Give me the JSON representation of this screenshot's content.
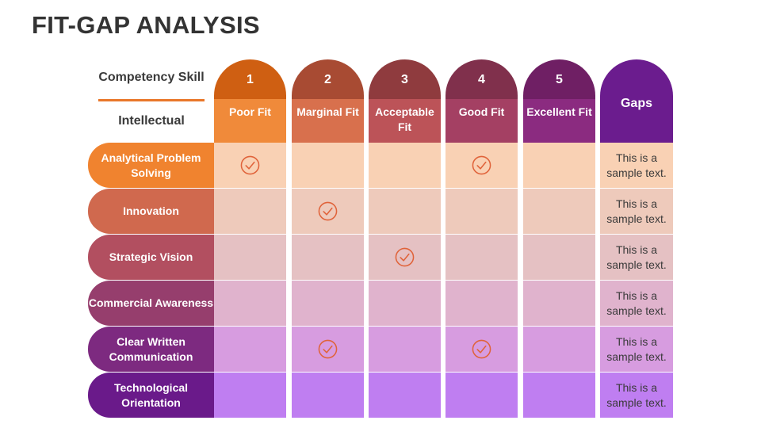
{
  "title": "FIT-GAP ANALYSIS",
  "header": {
    "competency_label": "Competency Skill",
    "category_label": "Intellectual",
    "gaps_label": "Gaps",
    "columns": [
      {
        "number": "1",
        "label": "Poor Fit",
        "color": "#cf5f12",
        "sub_color": "#f08a3a"
      },
      {
        "number": "2",
        "label": "Marginal Fit",
        "color": "#a84b33",
        "sub_color": "#d8704d"
      },
      {
        "number": "3",
        "label": "Acceptable Fit",
        "color": "#8f3b3e",
        "sub_color": "#bc5358"
      },
      {
        "number": "4",
        "label": "Good Fit",
        "color": "#80304c",
        "sub_color": "#a44063"
      },
      {
        "number": "5",
        "label": "Excellent Fit",
        "color": "#6f1f64",
        "sub_color": "#8b2b80"
      }
    ]
  },
  "rows": [
    {
      "label": "Analytical Problem Solving",
      "label_color": "#f0832f",
      "cell_color": "#f9d1b4",
      "checks": [
        true,
        false,
        false,
        true,
        false
      ],
      "gap": "This is a sample text."
    },
    {
      "label": "Innovation",
      "label_color": "#d0694e",
      "cell_color": "#eecabb",
      "checks": [
        false,
        true,
        false,
        false,
        false
      ],
      "gap": "This is a sample text."
    },
    {
      "label": "Strategic Vision",
      "label_color": "#b24f60",
      "cell_color": "#e5c1c3",
      "checks": [
        false,
        false,
        true,
        false,
        false
      ],
      "gap": "This is a sample text."
    },
    {
      "label": "Commercial Awareness",
      "label_color": "#963e6d",
      "cell_color": "#e0b3cd",
      "checks": [
        false,
        false,
        false,
        false,
        false
      ],
      "gap": "This is a sample text."
    },
    {
      "label": "Clear Written Communication",
      "label_color": "#7d2a80",
      "cell_color": "#d79ce0",
      "checks": [
        false,
        true,
        false,
        true,
        false
      ],
      "gap": "This is a sample text."
    },
    {
      "label": "Technological Orientation",
      "label_color": "#6a1a8a",
      "cell_color": "#bf7ef1",
      "checks": [
        false,
        false,
        false,
        false,
        false
      ],
      "gap": "This is a sample text."
    }
  ],
  "icons": {
    "check": "circle-check-icon",
    "check_color": "#e0633a"
  }
}
